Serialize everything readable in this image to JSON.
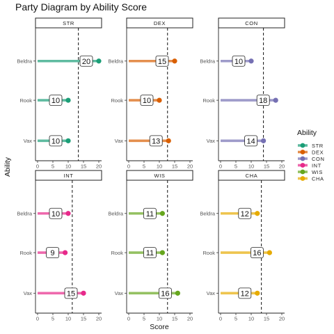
{
  "chart_data": {
    "type": "lollipop-facet",
    "title": "Party Diagram by Ability Score",
    "xlabel": "Score",
    "ylabel": "Ability",
    "xlim": [
      0,
      20
    ],
    "x_ticks": [
      "0",
      "5",
      "10",
      "15",
      "20"
    ],
    "characters": [
      "Beldra",
      "Rook",
      "Vax"
    ],
    "legend": {
      "title": "Ability",
      "position": "right"
    },
    "grid": false,
    "panels": [
      {
        "ability": "STR",
        "color": "#1b9e77",
        "mean": 13.33,
        "values": [
          20,
          10,
          10
        ]
      },
      {
        "ability": "DEX",
        "color": "#d95f02",
        "mean": 12.67,
        "values": [
          15,
          10,
          13
        ]
      },
      {
        "ability": "CON",
        "color": "#7570b3",
        "mean": 14.0,
        "values": [
          10,
          18,
          14
        ]
      },
      {
        "ability": "INT",
        "color": "#e7298a",
        "mean": 11.33,
        "values": [
          10,
          9,
          15
        ]
      },
      {
        "ability": "WIS",
        "color": "#66a61e",
        "mean": 12.67,
        "values": [
          11,
          11,
          16
        ]
      },
      {
        "ability": "CHA",
        "color": "#e6ab02",
        "mean": 13.33,
        "values": [
          12,
          16,
          12
        ]
      }
    ]
  }
}
